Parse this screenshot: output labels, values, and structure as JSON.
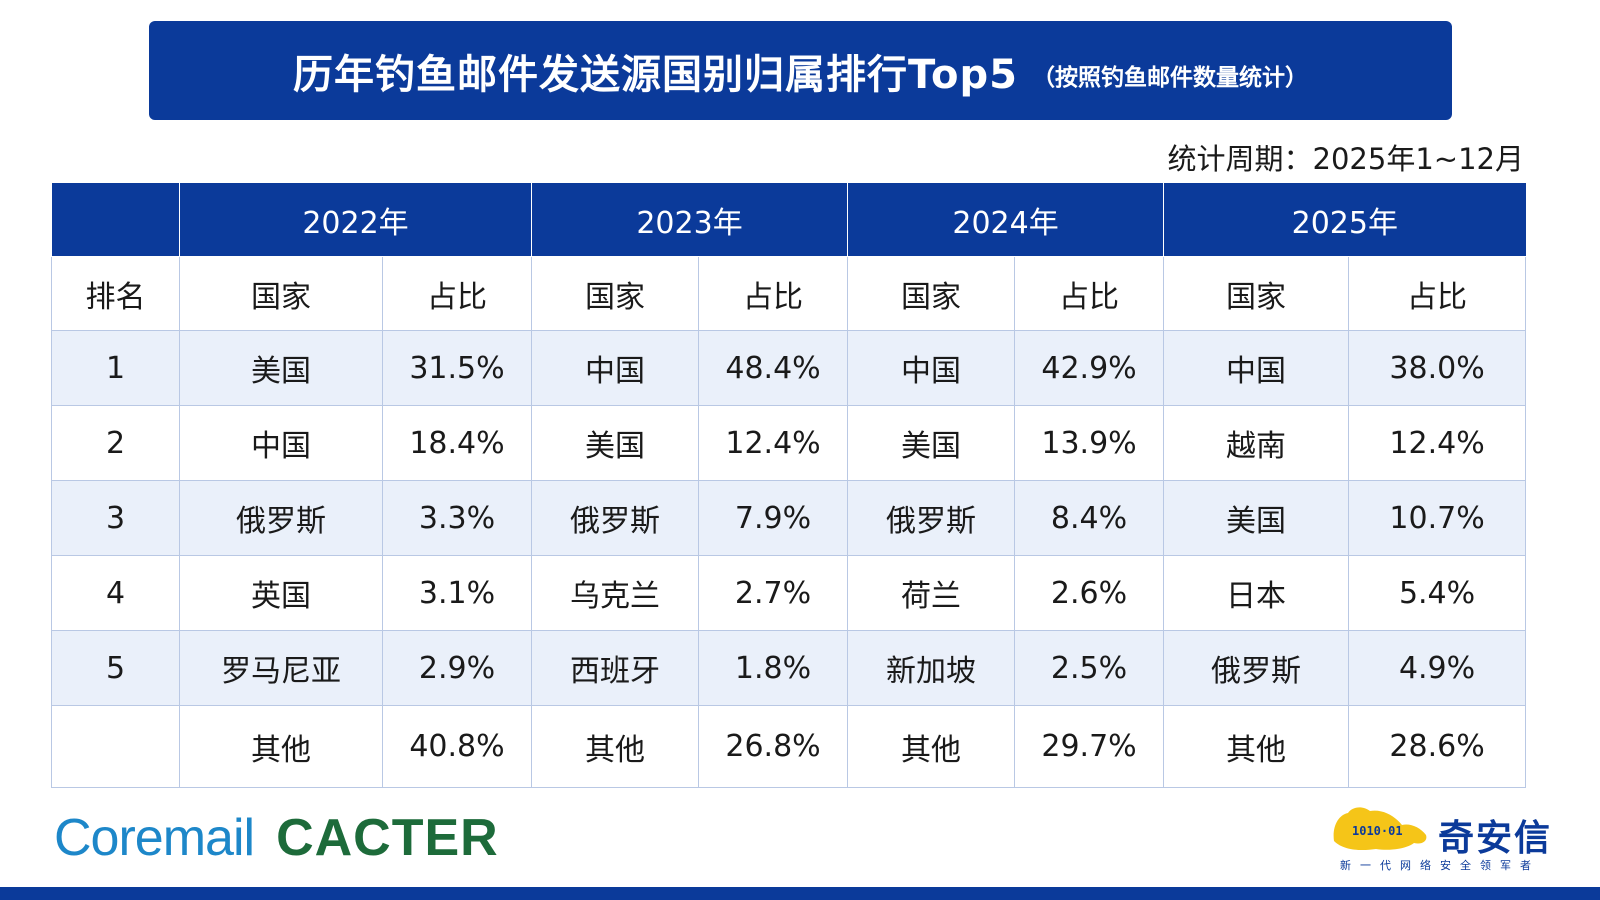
{
  "title": "历年钓鱼邮件发送源国别归属排行Top5",
  "subtitle": "（按照钓鱼邮件数量统计）",
  "period": "统计周期：2025年1~12月",
  "table": {
    "years": [
      "2022年",
      "2023年",
      "2024年",
      "2025年"
    ],
    "rank_header": "排名",
    "country_header": "国家",
    "share_header": "占比",
    "rows": [
      {
        "rank": "1",
        "y2022": {
          "country": "美国",
          "share": "31.5%"
        },
        "y2023": {
          "country": "中国",
          "share": "48.4%"
        },
        "y2024": {
          "country": "中国",
          "share": "42.9%"
        },
        "y2025": {
          "country": "中国",
          "share": "38.0%"
        }
      },
      {
        "rank": "2",
        "y2022": {
          "country": "中国",
          "share": "18.4%"
        },
        "y2023": {
          "country": "美国",
          "share": "12.4%"
        },
        "y2024": {
          "country": "美国",
          "share": "13.9%"
        },
        "y2025": {
          "country": "越南",
          "share": "12.4%"
        }
      },
      {
        "rank": "3",
        "y2022": {
          "country": "俄罗斯",
          "share": "3.3%"
        },
        "y2023": {
          "country": "俄罗斯",
          "share": "7.9%"
        },
        "y2024": {
          "country": "俄罗斯",
          "share": "8.4%"
        },
        "y2025": {
          "country": "美国",
          "share": "10.7%"
        }
      },
      {
        "rank": "4",
        "y2022": {
          "country": "英国",
          "share": "3.1%"
        },
        "y2023": {
          "country": "乌克兰",
          "share": "2.7%"
        },
        "y2024": {
          "country": "荷兰",
          "share": "2.6%"
        },
        "y2025": {
          "country": "日本",
          "share": "5.4%"
        }
      },
      {
        "rank": "5",
        "y2022": {
          "country": "罗马尼亚",
          "share": "2.9%"
        },
        "y2023": {
          "country": "西班牙",
          "share": "1.8%"
        },
        "y2024": {
          "country": "新加坡",
          "share": "2.5%"
        },
        "y2025": {
          "country": "俄罗斯",
          "share": "4.9%"
        }
      },
      {
        "rank": "",
        "y2022": {
          "country": "其他",
          "share": "40.8%"
        },
        "y2023": {
          "country": "其他",
          "share": "26.8%"
        },
        "y2024": {
          "country": "其他",
          "share": "29.7%"
        },
        "y2025": {
          "country": "其他",
          "share": "28.6%"
        }
      }
    ]
  },
  "logos": {
    "coremail": "Coremail",
    "cacter": "CACTER",
    "qianxin_name": "奇安信",
    "qianxin_slogan": "新一代网络安全领军者",
    "qianxin_binary": "1010·01"
  },
  "colors": {
    "primary": "#0b3a9a",
    "row_alt": "#eaf0fa",
    "coremail": "#1d87c9",
    "cacter": "#1d6b3a",
    "lion": "#f5c518"
  }
}
